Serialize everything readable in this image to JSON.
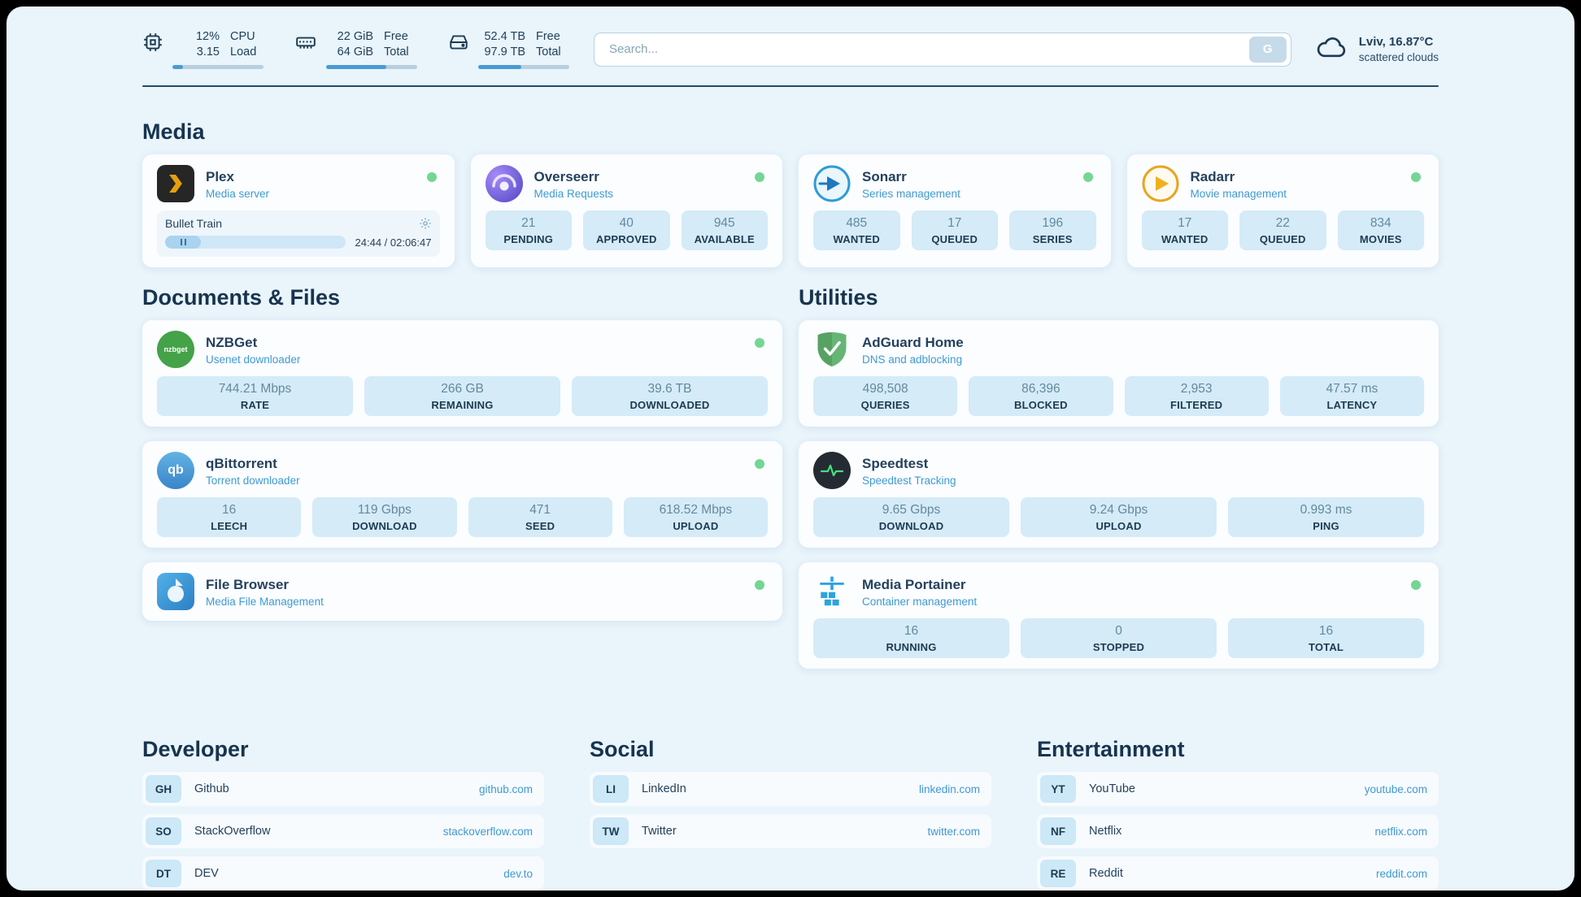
{
  "colors": {
    "page_bg": "#e9f4fb",
    "card_bg": "#fbfdff",
    "stat_bg": "#d5ebf8",
    "accent_blue": "#3e9ad3",
    "text_dark": "#1d3a52",
    "status_online": "#74d694",
    "progress_fill": "#4a9bd4"
  },
  "header": {
    "resources": [
      {
        "icon": "cpu-icon",
        "value_top": "12%",
        "value_bottom": "3.15",
        "label_top": "CPU",
        "label_bottom": "Load",
        "progress": 12
      },
      {
        "icon": "ram-icon",
        "value_top": "22 GiB",
        "value_bottom": "64 GiB",
        "label_top": "Free",
        "label_bottom": "Total",
        "progress": 66
      },
      {
        "icon": "disk-icon",
        "value_top": "52.4 TB",
        "value_bottom": "97.9 TB",
        "label_top": "Free",
        "label_bottom": "Total",
        "progress": 47
      }
    ],
    "search": {
      "placeholder": "Search...",
      "button_label": "G"
    },
    "weather": {
      "icon": "cloud-icon",
      "location": "Lviv, 16.87°C",
      "condition": "scattered clouds"
    }
  },
  "media": {
    "heading": "Media",
    "cards": [
      {
        "icon": "plex-icon",
        "title": "Plex",
        "subtitle": "Media server",
        "player": {
          "track_title": "Bullet Train",
          "time": "24:44 / 02:06:47",
          "progress": 20
        }
      },
      {
        "icon": "overseerr-icon",
        "title": "Overseerr",
        "subtitle": "Media Requests",
        "stats": [
          {
            "value": "21",
            "label": "PENDING"
          },
          {
            "value": "40",
            "label": "APPROVED"
          },
          {
            "value": "945",
            "label": "AVAILABLE"
          }
        ]
      },
      {
        "icon": "sonarr-icon",
        "title": "Sonarr",
        "subtitle": "Series management",
        "stats": [
          {
            "value": "485",
            "label": "WANTED"
          },
          {
            "value": "17",
            "label": "QUEUED"
          },
          {
            "value": "196",
            "label": "SERIES"
          }
        ]
      },
      {
        "icon": "radarr-icon",
        "title": "Radarr",
        "subtitle": "Movie management",
        "stats": [
          {
            "value": "17",
            "label": "WANTED"
          },
          {
            "value": "22",
            "label": "QUEUED"
          },
          {
            "value": "834",
            "label": "MOVIES"
          }
        ]
      }
    ]
  },
  "documents": {
    "heading": "Documents & Files",
    "cards": [
      {
        "icon": "nzbget-icon",
        "title": "NZBGet",
        "subtitle": "Usenet downloader",
        "stats": [
          {
            "value": "744.21 Mbps",
            "label": "RATE"
          },
          {
            "value": "266 GB",
            "label": "REMAINING"
          },
          {
            "value": "39.6 TB",
            "label": "DOWNLOADED"
          }
        ]
      },
      {
        "icon": "qbittorrent-icon",
        "title": "qBittorrent",
        "subtitle": "Torrent downloader",
        "stats": [
          {
            "value": "16",
            "label": "LEECH"
          },
          {
            "value": "119 Gbps",
            "label": "DOWNLOAD"
          },
          {
            "value": "471",
            "label": "SEED"
          },
          {
            "value": "618.52 Mbps",
            "label": "UPLOAD"
          }
        ]
      },
      {
        "icon": "filebrowser-icon",
        "title": "File Browser",
        "subtitle": "Media File Management"
      }
    ]
  },
  "utilities": {
    "heading": "Utilities",
    "cards": [
      {
        "icon": "adguard-icon",
        "title": "AdGuard Home",
        "subtitle": "DNS and adblocking",
        "stats": [
          {
            "value": "498,508",
            "label": "QUERIES"
          },
          {
            "value": "86,396",
            "label": "BLOCKED"
          },
          {
            "value": "2,953",
            "label": "FILTERED"
          },
          {
            "value": "47.57 ms",
            "label": "LATENCY"
          }
        ]
      },
      {
        "icon": "speedtest-icon",
        "title": "Speedtest",
        "subtitle": "Speedtest Tracking",
        "stats": [
          {
            "value": "9.65 Gbps",
            "label": "DOWNLOAD"
          },
          {
            "value": "9.24 Gbps",
            "label": "UPLOAD"
          },
          {
            "value": "0.993 ms",
            "label": "PING"
          }
        ]
      },
      {
        "icon": "portainer-icon",
        "title": "Media Portainer",
        "subtitle": "Container management",
        "stats": [
          {
            "value": "16",
            "label": "RUNNING"
          },
          {
            "value": "0",
            "label": "STOPPED"
          },
          {
            "value": "16",
            "label": "TOTAL"
          }
        ]
      }
    ]
  },
  "links": {
    "developer": {
      "heading": "Developer",
      "items": [
        {
          "badge": "GH",
          "name": "Github",
          "url": "github.com"
        },
        {
          "badge": "SO",
          "name": "StackOverflow",
          "url": "stackoverflow.com"
        },
        {
          "badge": "DT",
          "name": "DEV",
          "url": "dev.to"
        }
      ]
    },
    "social": {
      "heading": "Social",
      "items": [
        {
          "badge": "LI",
          "name": "LinkedIn",
          "url": "linkedin.com"
        },
        {
          "badge": "TW",
          "name": "Twitter",
          "url": "twitter.com"
        }
      ]
    },
    "entertainment": {
      "heading": "Entertainment",
      "items": [
        {
          "badge": "YT",
          "name": "YouTube",
          "url": "youtube.com"
        },
        {
          "badge": "NF",
          "name": "Netflix",
          "url": "netflix.com"
        },
        {
          "badge": "RE",
          "name": "Reddit",
          "url": "reddit.com"
        }
      ]
    }
  }
}
